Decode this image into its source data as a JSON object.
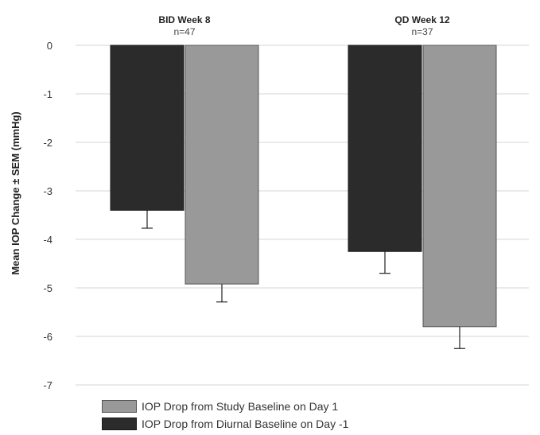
{
  "chart_data": {
    "type": "bar",
    "title": "",
    "xlabel": "",
    "ylabel": "Mean IOP Change ± SEM (mmHg)",
    "ylim": [
      -7,
      0
    ],
    "yticks": [
      0,
      -1,
      -2,
      -3,
      -4,
      -5,
      -6,
      -7
    ],
    "grid": true,
    "legend_position": "bottom",
    "categories": [
      {
        "label": "BID Week 8",
        "n": "n=47"
      },
      {
        "label": "QD Week 12",
        "n": "n=37"
      }
    ],
    "series": [
      {
        "name": "IOP Drop from Diurnal Baseline on Day -1",
        "color": "#2b2b2b",
        "values": [
          -3.4,
          -4.25
        ],
        "sem": [
          0.37,
          0.45
        ]
      },
      {
        "name": "IOP Drop from Study Baseline on Day 1",
        "color": "#999999",
        "values": [
          -4.92,
          -5.8
        ],
        "sem": [
          0.37,
          0.45
        ]
      }
    ],
    "legend_order": [
      1,
      0
    ]
  }
}
